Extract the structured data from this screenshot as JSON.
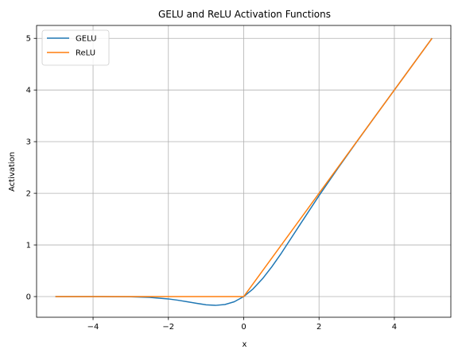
{
  "chart_data": {
    "type": "line",
    "title": "GELU and ReLU Activation Functions",
    "xlabel": "x",
    "ylabel": "Activation",
    "xlim": [
      -5.5,
      5.5
    ],
    "ylim": [
      -0.4,
      5.25
    ],
    "x_ticks": [
      -4,
      -2,
      0,
      2,
      4
    ],
    "x_tick_labels": [
      "−4",
      "−2",
      "0",
      "2",
      "4"
    ],
    "y_ticks": [
      0,
      1,
      2,
      3,
      4,
      5
    ],
    "y_tick_labels": [
      "0",
      "1",
      "2",
      "3",
      "4",
      "5"
    ],
    "grid": true,
    "legend": "top-left",
    "series": [
      {
        "name": "GELU",
        "color": "#1f77b4",
        "x": [
          -5,
          -4.5,
          -4,
          -3.5,
          -3,
          -2.5,
          -2,
          -1.75,
          -1.5,
          -1.25,
          -1,
          -0.75,
          -0.5,
          -0.25,
          0,
          0.25,
          0.5,
          0.75,
          1,
          1.25,
          1.5,
          2,
          2.5,
          3,
          3.5,
          4,
          4.5,
          5
        ],
        "y": [
          0,
          0,
          -0.0001,
          -0.0008,
          -0.004,
          -0.016,
          -0.045,
          -0.07,
          -0.1,
          -0.13,
          -0.159,
          -0.17,
          -0.154,
          -0.1,
          0,
          0.15,
          0.346,
          0.58,
          0.841,
          1.12,
          1.4,
          1.955,
          2.484,
          2.996,
          3.499,
          4,
          4.5,
          5
        ]
      },
      {
        "name": "ReLU",
        "color": "#ff7f0e",
        "x": [
          -5,
          0,
          5
        ],
        "y": [
          0,
          0,
          5
        ]
      }
    ]
  }
}
